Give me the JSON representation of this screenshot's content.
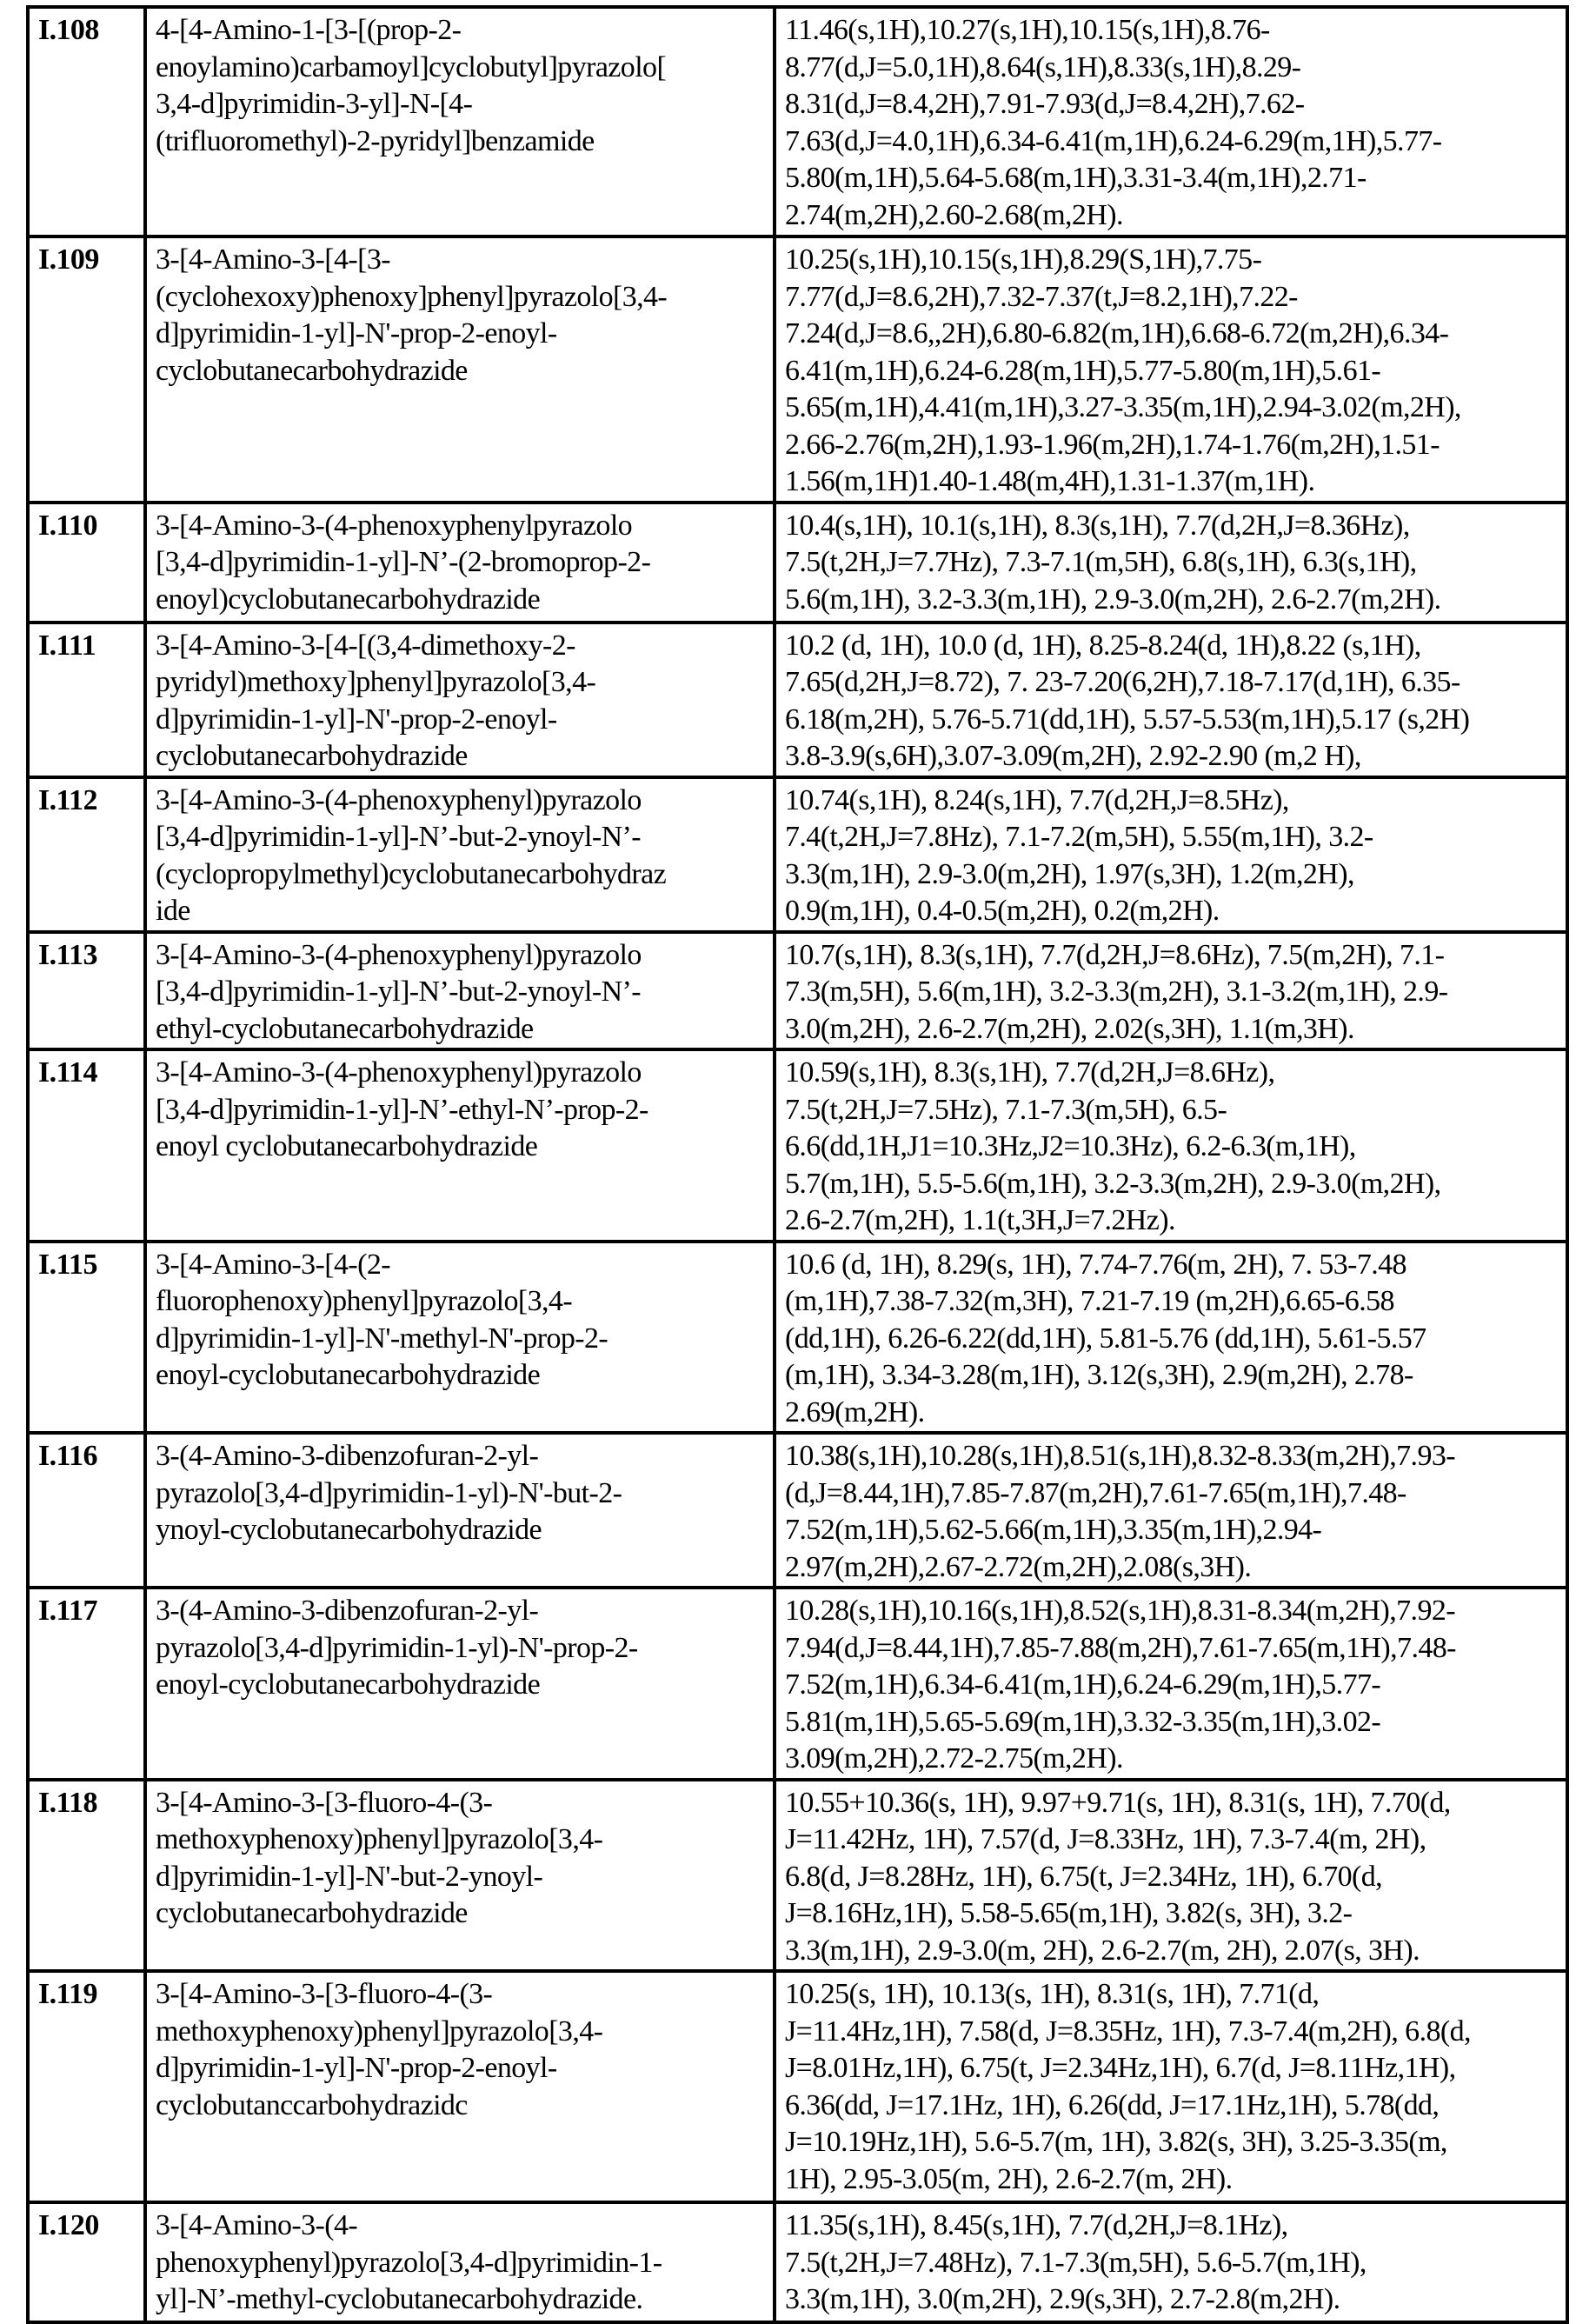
{
  "rows": [
    {
      "id": "I.108",
      "name": [
        "4-[4-Amino-1-[3-[(prop-2-",
        "enoylamino)carbamoyl]cyclobutyl]pyrazolo[",
        "3,4-d]pyrimidin-3-yl]-N-[4-",
        "(trifluoromethyl)-2-pyridyl]benzamide"
      ],
      "nmr": [
        "11.46(s,1H),10.27(s,1H),10.15(s,1H),8.76-",
        "8.77(d,J=5.0,1H),8.64(s,1H),8.33(s,1H),8.29-",
        "8.31(d,J=8.4,2H),7.91-7.93(d,J=8.4,2H),7.62-",
        "7.63(d,J=4.0,1H),6.34-6.41(m,1H),6.24-6.29(m,1H),5.77-",
        "5.80(m,1H),5.64-5.68(m,1H),3.31-3.4(m,1H),2.71-",
        "2.74(m,2H),2.60-2.68(m,2H)."
      ]
    },
    {
      "id": "I.109",
      "name": [
        "3-[4-Amino-3-[4-[3-",
        "(cyclohexoxy)phenoxy]phenyl]pyrazolo[3,4-",
        "d]pyrimidin-1-yl]-N'-prop-2-enoyl-",
        "cyclobutanecarbohydrazide"
      ],
      "nmr": [
        "10.25(s,1H),10.15(s,1H),8.29(S,1H),7.75-",
        "7.77(d,J=8.6,2H),7.32-7.37(t,J=8.2,1H),7.22-",
        "7.24(d,J=8.6,,2H),6.80-6.82(m,1H),6.68-6.72(m,2H),6.34-",
        "6.41(m,1H),6.24-6.28(m,1H),5.77-5.80(m,1H),5.61-",
        "5.65(m,1H),4.41(m,1H),3.27-3.35(m,1H),2.94-3.02(m,2H),",
        "2.66-2.76(m,2H),1.93-1.96(m,2H),1.74-1.76(m,2H),1.51-",
        "1.56(m,1H)1.40-1.48(m,4H),1.31-1.37(m,1H)."
      ]
    },
    {
      "id": "I.110",
      "name": [
        "3-[4-Amino-3-(4-phenoxyphenylpyrazolo",
        "[3,4-d]pyrimidin-1-yl]-N’-(2-bromoprop-2-",
        "enoyl)cyclobutanecarbohydrazide"
      ],
      "nmr": [
        "10.4(s,1H), 10.1(s,1H), 8.3(s,1H), 7.7(d,2H,J=8.36Hz),",
        "7.5(t,2H,J=7.7Hz), 7.3-7.1(m,5H), 6.8(s,1H), 6.3(s,1H),",
        "5.6(m,1H), 3.2-3.3(m,1H), 2.9-3.0(m,2H), 2.6-2.7(m,2H)."
      ]
    },
    {
      "id": "I.111",
      "name": [
        "3-[4-Amino-3-[4-[(3,4-dimethoxy-2-",
        "pyridyl)methoxy]phenyl]pyrazolo[3,4-",
        "d]pyrimidin-1-yl]-N'-prop-2-enoyl-",
        "cyclobutanecarbohydrazide"
      ],
      "nmr": [
        "10.2 (d, 1H), 10.0 (d, 1H), 8.25-8.24(d, 1H),8.22 (s,1H),",
        "7.65(d,2H,J=8.72), 7. 23-7.20(6,2H),7.18-7.17(d,1H), 6.35-",
        "6.18(m,2H), 5.76-5.71(dd,1H), 5.57-5.53(m,1H),5.17 (s,2H)",
        "3.8-3.9(s,6H),3.07-3.09(m,2H), 2.92-2.90 (m,2 H),"
      ]
    },
    {
      "id": "I.112",
      "name": [
        "3-[4-Amino-3-(4-phenoxyphenyl)pyrazolo",
        "[3,4-d]pyrimidin-1-yl]-N’-but-2-ynoyl-N’-",
        "(cyclopropylmethyl)cyclobutanecarbohydraz",
        "ide"
      ],
      "nmr": [
        "10.74(s,1H), 8.24(s,1H), 7.7(d,2H,J=8.5Hz),",
        "7.4(t,2H,J=7.8Hz), 7.1-7.2(m,5H), 5.55(m,1H), 3.2-",
        "3.3(m,1H), 2.9-3.0(m,2H), 1.97(s,3H), 1.2(m,2H),",
        "0.9(m,1H), 0.4-0.5(m,2H), 0.2(m,2H)."
      ]
    },
    {
      "id": "I.113",
      "name": [
        "3-[4-Amino-3-(4-phenoxyphenyl)pyrazolo",
        "[3,4-d]pyrimidin-1-yl]-N’-but-2-ynoyl-N’-",
        "ethyl-cyclobutanecarbohydrazide"
      ],
      "nmr": [
        "10.7(s,1H), 8.3(s,1H), 7.7(d,2H,J=8.6Hz), 7.5(m,2H), 7.1-",
        "7.3(m,5H), 5.6(m,1H), 3.2-3.3(m,2H), 3.1-3.2(m,1H), 2.9-",
        "3.0(m,2H), 2.6-2.7(m,2H), 2.02(s,3H), 1.1(m,3H)."
      ]
    },
    {
      "id": "I.114",
      "name": [
        "3-[4-Amino-3-(4-phenoxyphenyl)pyrazolo",
        "[3,4-d]pyrimidin-1-yl]-N’-ethyl-N’-prop-2-",
        "enoyl cyclobutanecarbohydrazide"
      ],
      "nmr": [
        "10.59(s,1H), 8.3(s,1H), 7.7(d,2H,J=8.6Hz),",
        "7.5(t,2H,J=7.5Hz), 7.1-7.3(m,5H), 6.5-",
        "6.6(dd,1H,J1=10.3Hz,J2=10.3Hz), 6.2-6.3(m,1H),",
        "5.7(m,1H), 5.5-5.6(m,1H), 3.2-3.3(m,2H), 2.9-3.0(m,2H),",
        "2.6-2.7(m,2H), 1.1(t,3H,J=7.2Hz)."
      ]
    },
    {
      "id": "I.115",
      "name": [
        "3-[4-Amino-3-[4-(2-",
        "fluorophenoxy)phenyl]pyrazolo[3,4-",
        "d]pyrimidin-1-yl]-N'-methyl-N'-prop-2-",
        "enoyl-cyclobutanecarbohydrazide"
      ],
      "nmr": [
        "10.6 (d, 1H), 8.29(s, 1H), 7.74-7.76(m, 2H), 7. 53-7.48",
        "(m,1H),7.38-7.32(m,3H), 7.21-7.19 (m,2H),6.65-6.58",
        "(dd,1H), 6.26-6.22(dd,1H), 5.81-5.76 (dd,1H), 5.61-5.57",
        "(m,1H), 3.34-3.28(m,1H), 3.12(s,3H), 2.9(m,2H), 2.78-",
        "2.69(m,2H)."
      ]
    },
    {
      "id": "I.116",
      "name": [
        "3-(4-Amino-3-dibenzofuran-2-yl-",
        "pyrazolo[3,4-d]pyrimidin-1-yl)-N'-but-2-",
        "ynoyl-cyclobutanecarbohydrazide"
      ],
      "nmr": [
        "10.38(s,1H),10.28(s,1H),8.51(s,1H),8.32-8.33(m,2H),7.93-",
        "(d,J=8.44,1H),7.85-7.87(m,2H),7.61-7.65(m,1H),7.48-",
        "7.52(m,1H),5.62-5.66(m,1H),3.35(m,1H),2.94-",
        "2.97(m,2H),2.67-2.72(m,2H),2.08(s,3H)."
      ]
    },
    {
      "id": "I.117",
      "name": [
        "3-(4-Amino-3-dibenzofuran-2-yl-",
        "pyrazolo[3,4-d]pyrimidin-1-yl)-N'-prop-2-",
        "enoyl-cyclobutanecarbohydrazide"
      ],
      "nmr": [
        "10.28(s,1H),10.16(s,1H),8.52(s,1H),8.31-8.34(m,2H),7.92-",
        "7.94(d,J=8.44,1H),7.85-7.88(m,2H),7.61-7.65(m,1H),7.48-",
        "7.52(m,1H),6.34-6.41(m,1H),6.24-6.29(m,1H),5.77-",
        "5.81(m,1H),5.65-5.69(m,1H),3.32-3.35(m,1H),3.02-",
        "3.09(m,2H),2.72-2.75(m,2H)."
      ]
    },
    {
      "id": "I.118",
      "name": [
        "3-[4-Amino-3-[3-fluoro-4-(3-",
        "methoxyphenoxy)phenyl]pyrazolo[3,4-",
        "d]pyrimidin-1-yl]-N'-but-2-ynoyl-",
        "cyclobutanecarbohydrazide"
      ],
      "nmr": [
        "10.55+10.36(s, 1H), 9.97+9.71(s, 1H), 8.31(s, 1H), 7.70(d,",
        "J=11.42Hz, 1H), 7.57(d, J=8.33Hz, 1H), 7.3-7.4(m, 2H),",
        "6.8(d, J=8.28Hz, 1H), 6.75(t, J=2.34Hz, 1H), 6.70(d,",
        "J=8.16Hz,1H), 5.58-5.65(m,1H), 3.82(s, 3H), 3.2-",
        "3.3(m,1H), 2.9-3.0(m, 2H), 2.6-2.7(m, 2H), 2.07(s, 3H)."
      ]
    },
    {
      "id": "I.119",
      "name": [
        "3-[4-Amino-3-[3-fluoro-4-(3-",
        "methoxyphenoxy)phenyl]pyrazolo[3,4-",
        "d]pyrimidin-1-yl]-N'-prop-2-enoyl-",
        "cyclobutanccarbohydrazidc"
      ],
      "nmr": [
        "10.25(s, 1H), 10.13(s, 1H), 8.31(s, 1H), 7.71(d,",
        "J=11.4Hz,1H), 7.58(d, J=8.35Hz, 1H), 7.3-7.4(m,2H), 6.8(d,",
        "J=8.01Hz,1H), 6.75(t, J=2.34Hz,1H), 6.7(d, J=8.11Hz,1H),",
        "6.36(dd, J=17.1Hz, 1H), 6.26(dd, J=17.1Hz,1H), 5.78(dd,",
        "J=10.19Hz,1H), 5.6-5.7(m, 1H), 3.82(s, 3H), 3.25-3.35(m,",
        "1H), 2.95-3.05(m, 2H), 2.6-2.7(m, 2H)."
      ]
    },
    {
      "id": "I.120",
      "name": [
        "3-[4-Amino-3-(4-",
        "phenoxyphenyl)pyrazolo[3,4-d]pyrimidin-1-",
        "yl]-N’-methyl-cyclobutanecarbohydrazide."
      ],
      "nmr": [
        "11.35(s,1H), 8.45(s,1H), 7.7(d,2H,J=8.1Hz),",
        "7.5(t,2H,J=7.48Hz), 7.1-7.3(m,5H), 5.6-5.7(m,1H),",
        "3.3(m,1H), 3.0(m,2H), 2.9(s,3H), 2.7-2.8(m,2H)."
      ]
    }
  ]
}
